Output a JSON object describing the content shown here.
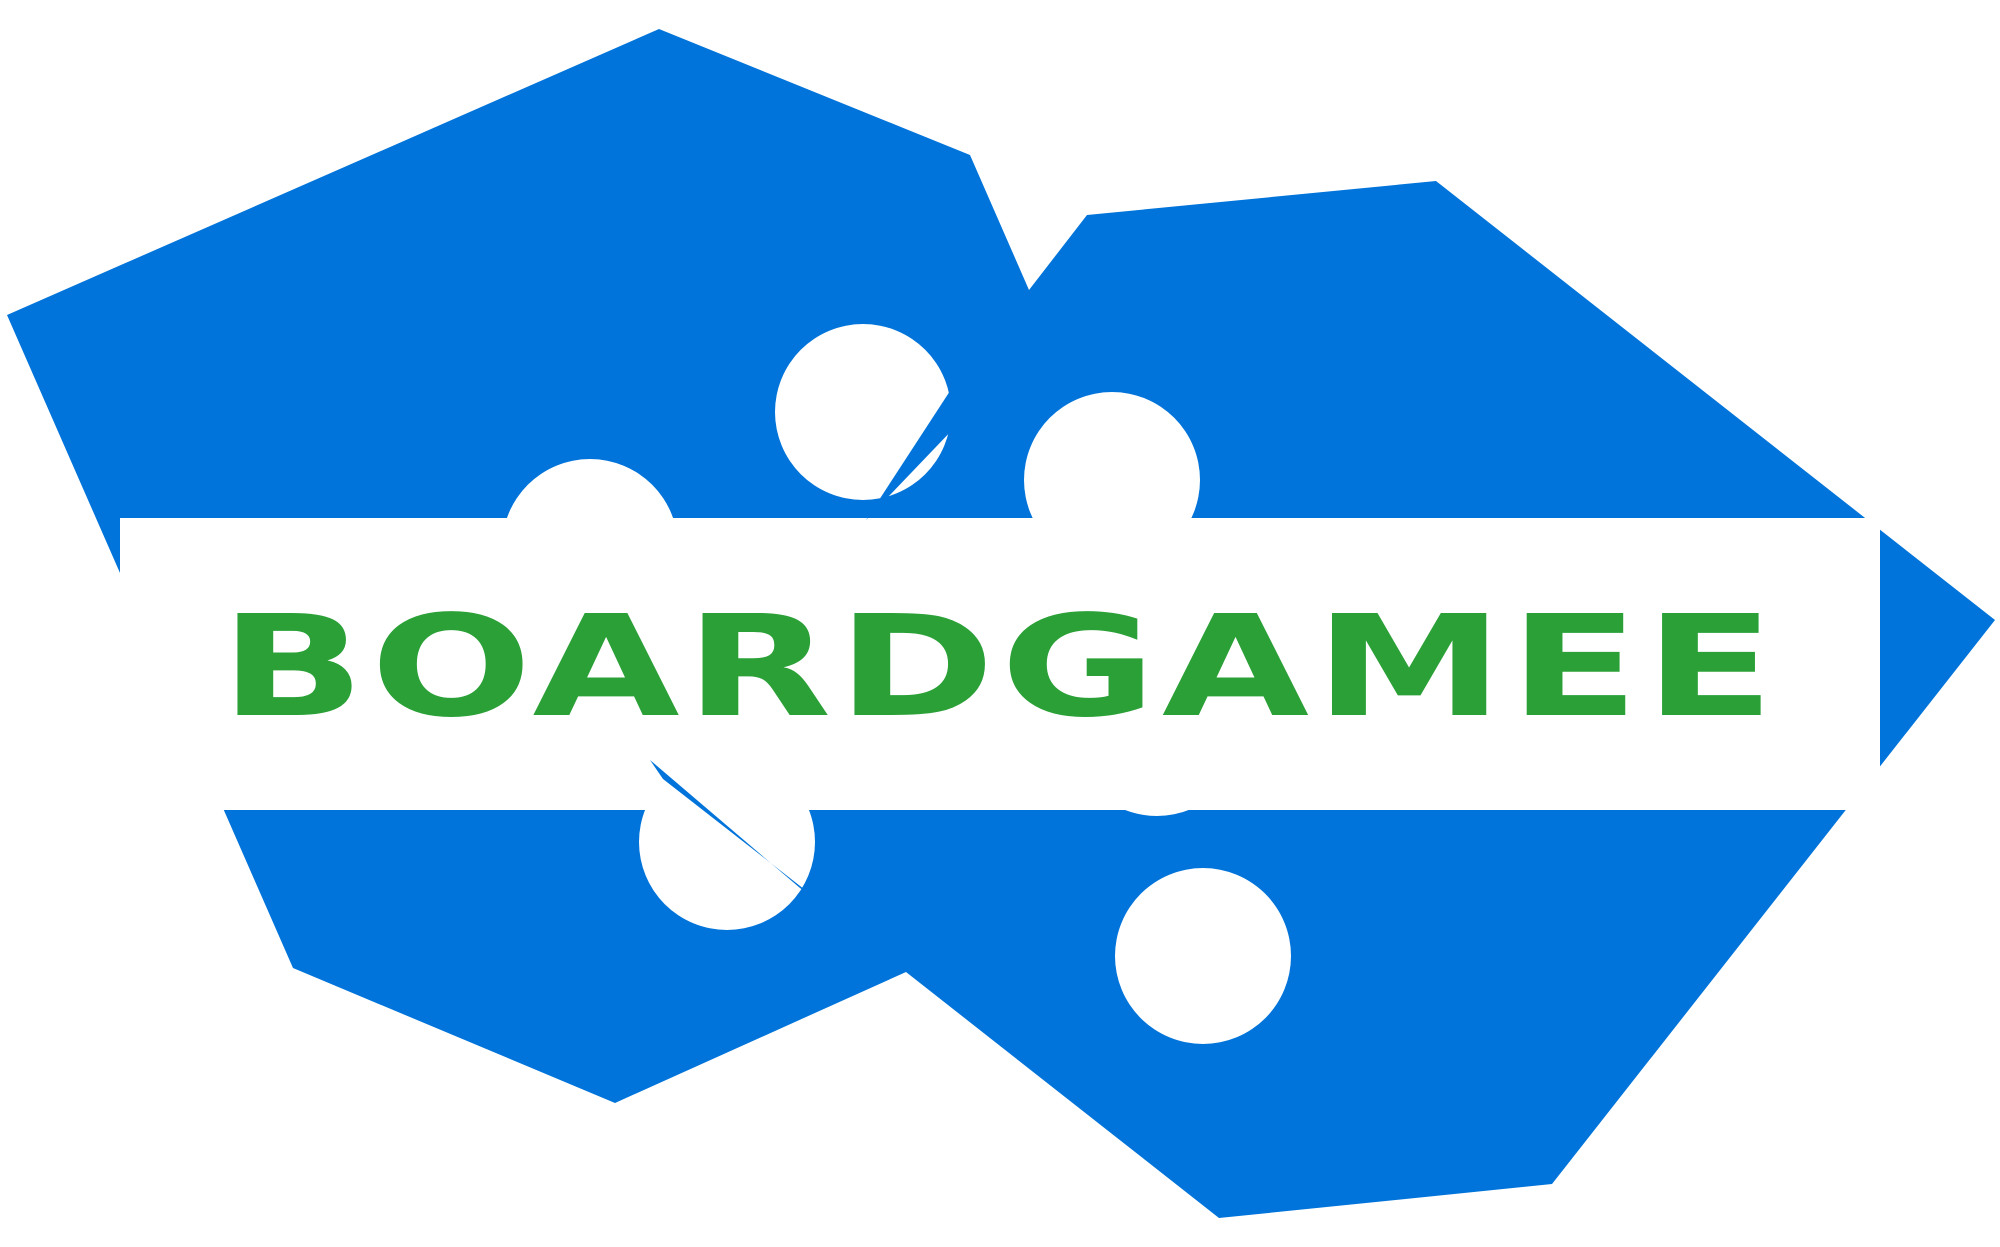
{
  "logo": {
    "wordmark": "BOARDGAMEE",
    "colors": {
      "shape": "#0074DA",
      "text": "#2AA037",
      "background": "#FFFFFF"
    }
  }
}
